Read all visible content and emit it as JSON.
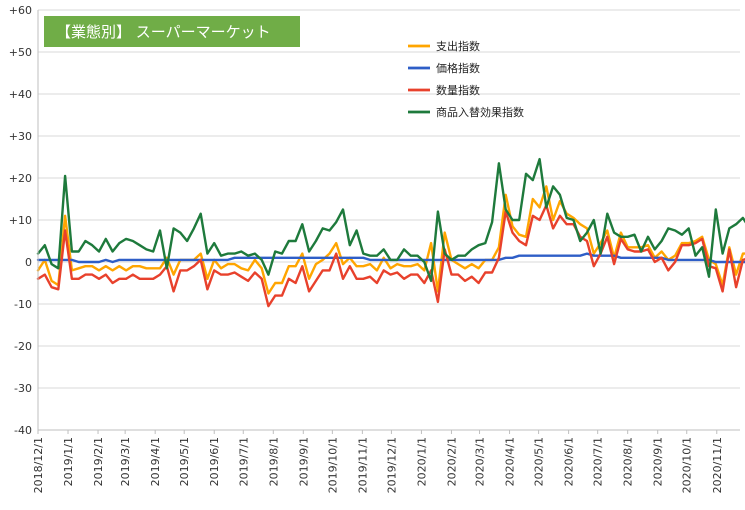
{
  "chart_data": {
    "type": "line",
    "title": "【業態別】 スーパーマーケット",
    "title_bg": "#70ad47",
    "xlabel": "",
    "ylabel": "",
    "ylim": [
      -40,
      60
    ],
    "y_ticks": [
      60,
      50,
      40,
      30,
      20,
      10,
      0,
      -10,
      -20,
      -30,
      -40
    ],
    "y_tick_labels": [
      "+60",
      "+50",
      "+40",
      "+30",
      "+20",
      "+10",
      "0",
      "-10",
      "-20",
      "-30",
      "-40"
    ],
    "grid": true,
    "legend_position": "top-right",
    "x_tick_labels": [
      "2018/12/1",
      "2019/1/1",
      "2019/2/1",
      "2019/3/1",
      "2019/4/1",
      "2019/5/1",
      "2019/6/1",
      "2019/7/1",
      "2019/8/1",
      "2019/9/1",
      "2019/10/1",
      "2019/11/1",
      "2019/12/1",
      "2020/1/1",
      "2020/2/1",
      "2020/3/1",
      "2020/4/1",
      "2020/5/1",
      "2020/6/1",
      "2020/7/1",
      "2020/8/1",
      "2020/9/1",
      "2020/10/1",
      "2020/11/1"
    ],
    "x_start": "2018/12/1",
    "x_end": "2020/11/25",
    "x_interval_days": 7,
    "series": [
      {
        "name": "支出指数",
        "color": "#ffa500",
        "values": [
          -2,
          0.5,
          -4.5,
          -5.5,
          11,
          -2,
          -1.5,
          -1,
          -1,
          -2,
          -1,
          -2,
          -1,
          -2,
          -1,
          -1,
          -1.5,
          -1.5,
          -1.5,
          1,
          -3,
          0.5,
          0.5,
          0.5,
          2,
          -4,
          0.5,
          -1.5,
          -0.5,
          -0.5,
          -1.5,
          -2,
          0.5,
          -1.5,
          -7.5,
          -5,
          -5,
          -1,
          -1,
          2,
          -4,
          -0.5,
          0.5,
          2,
          4.5,
          -0.5,
          1,
          -1,
          -1,
          -0.5,
          -2,
          1,
          -1.5,
          -0.5,
          -1,
          -1,
          -0.5,
          -2,
          4.5,
          -7,
          7,
          0.5,
          -0.5,
          -1.5,
          -0.5,
          -1.5,
          0.5,
          0.5,
          3.5,
          16,
          8.5,
          6.5,
          6,
          15,
          13,
          18,
          10,
          14.5,
          11.5,
          10.5,
          9,
          8,
          2,
          4.5,
          7.5,
          1,
          7,
          3.5,
          3.5,
          3.5,
          4,
          1,
          2.5,
          0.5,
          1.5,
          4.5,
          4.5,
          5,
          6,
          0.5,
          -0.5,
          -5.5,
          3.5,
          -3,
          2,
          2,
          3.5,
          1.5,
          3
        ]
      },
      {
        "name": "価格指数",
        "color": "#2e5ec7",
        "values": [
          0.5,
          0.5,
          0.5,
          0.5,
          0.5,
          0.5,
          0,
          0,
          0,
          0,
          0.5,
          0,
          0.5,
          0.5,
          0.5,
          0.5,
          0.5,
          0.5,
          0.5,
          0.5,
          0.5,
          0.5,
          0.5,
          0.5,
          0.5,
          0.5,
          0.5,
          0.5,
          0.5,
          1,
          1,
          1,
          1,
          1,
          1,
          1,
          1,
          1,
          1,
          1,
          1,
          1,
          1,
          1,
          1,
          1,
          1,
          1,
          1,
          0.5,
          0.5,
          0.5,
          0.5,
          0.5,
          0.5,
          0.5,
          0.5,
          0.5,
          0.5,
          0.5,
          0.5,
          0.5,
          0.5,
          0.5,
          0.5,
          0.5,
          0.5,
          0.5,
          0.5,
          1,
          1,
          1.5,
          1.5,
          1.5,
          1.5,
          1.5,
          1.5,
          1.5,
          1.5,
          1.5,
          1.5,
          2,
          1.5,
          1.5,
          1.5,
          1.5,
          1,
          1,
          1,
          1,
          1,
          1,
          1,
          0.5,
          0.5,
          0.5,
          0.5,
          0.5,
          0.5,
          0.5,
          0,
          0,
          0,
          0,
          0,
          0,
          0,
          0.5,
          0.5
        ]
      },
      {
        "name": "数量指数",
        "color": "#e8412c",
        "values": [
          -4,
          -3,
          -6,
          -6.5,
          7.5,
          -4,
          -4,
          -3,
          -3,
          -4,
          -3,
          -5,
          -4,
          -4,
          -3,
          -4,
          -4,
          -4,
          -3,
          -1,
          -7,
          -2,
          -2,
          -1,
          0.5,
          -6.5,
          -2,
          -3,
          -3,
          -2.5,
          -3.5,
          -4.5,
          -2.5,
          -4,
          -10.5,
          -8,
          -8,
          -4,
          -5,
          -1,
          -7,
          -4.5,
          -2,
          -2,
          2,
          -4,
          -1,
          -4,
          -4,
          -3.5,
          -5,
          -2,
          -3,
          -2.5,
          -4,
          -3,
          -3,
          -5,
          -2,
          -9.5,
          3,
          -3,
          -3,
          -4.5,
          -3.5,
          -5,
          -2.5,
          -2.5,
          1,
          12,
          7,
          5,
          4,
          11,
          10,
          13.5,
          8,
          11,
          9,
          9,
          6,
          5,
          -1,
          2,
          6,
          -0.5,
          5.5,
          3,
          2.5,
          2.5,
          3,
          0,
          1,
          -2,
          0,
          4,
          4,
          4.5,
          5.5,
          -1,
          -1.5,
          -7,
          3,
          -6,
          0.5,
          1,
          2.5,
          0.5,
          2.5
        ]
      },
      {
        "name": "商品入替効果指数",
        "color": "#1e7a3c",
        "values": [
          2,
          4,
          -0.5,
          -1.5,
          20.5,
          2.5,
          2.5,
          5,
          4,
          2.5,
          5.5,
          2.5,
          4.5,
          5.5,
          5,
          4,
          3,
          2.5,
          7.5,
          -1.5,
          8,
          7,
          5,
          8,
          11.5,
          2,
          4.5,
          1.5,
          2,
          2,
          2.5,
          1.5,
          2,
          0.5,
          -3,
          2.5,
          2,
          5,
          5,
          9,
          2.5,
          5,
          8,
          7.5,
          9.5,
          12.5,
          4,
          7.5,
          2,
          1.5,
          1.5,
          3,
          0.5,
          0.5,
          3,
          1.5,
          1.5,
          0,
          -4.5,
          12,
          2,
          0.5,
          1.5,
          1.5,
          3,
          4,
          4.5,
          9.5,
          23.5,
          12.5,
          10,
          10,
          21,
          19.5,
          24.5,
          13,
          18,
          16,
          10.5,
          10,
          5,
          7,
          10,
          2,
          11.5,
          7,
          6,
          6,
          6.5,
          2.5,
          6,
          3,
          5,
          8,
          7.5,
          6.5,
          8,
          1.5,
          3.5,
          -3.5,
          12.5,
          2,
          8,
          9,
          10.5,
          8,
          10
        ]
      }
    ]
  }
}
